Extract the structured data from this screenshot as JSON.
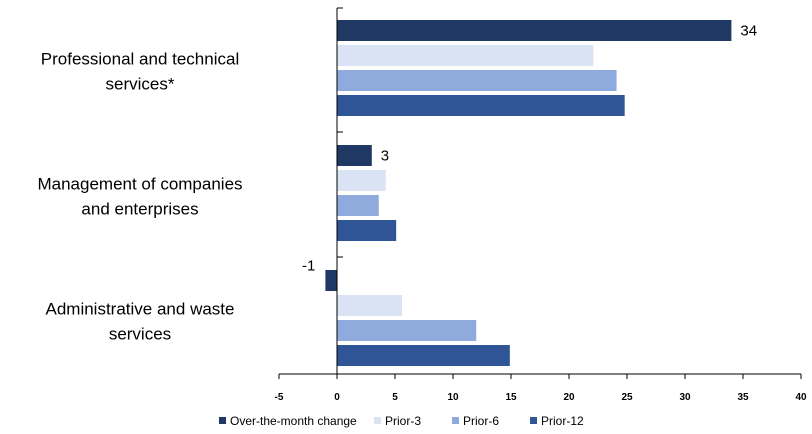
{
  "chart_data": {
    "type": "bar",
    "orientation": "horizontal",
    "title": "",
    "xlabel": "",
    "ylabel": "",
    "xlim": [
      -5,
      40
    ],
    "xticks": [
      -5,
      0,
      5,
      10,
      15,
      20,
      25,
      30,
      35,
      40
    ],
    "grid": false,
    "legend_position": "bottom",
    "categories": [
      [
        "Professional and technical",
        "services*"
      ],
      [
        "Management of companies",
        "and enterprises"
      ],
      [
        "Administrative and waste",
        "services"
      ]
    ],
    "series": [
      {
        "name": "Over-the-month change",
        "color": "#1f3864",
        "values": [
          34,
          3,
          -1
        ],
        "labels": [
          "34",
          "3",
          "-1"
        ]
      },
      {
        "name": "Prior-3",
        "color": "#dae3f3",
        "values": [
          22.1,
          4.2,
          5.6
        ],
        "labels": []
      },
      {
        "name": "Prior-6",
        "color": "#8faadc",
        "values": [
          24.1,
          3.6,
          12.0
        ],
        "labels": []
      },
      {
        "name": "Prior-12",
        "color": "#2f5597",
        "values": [
          24.8,
          5.1,
          14.9
        ],
        "labels": []
      }
    ]
  }
}
